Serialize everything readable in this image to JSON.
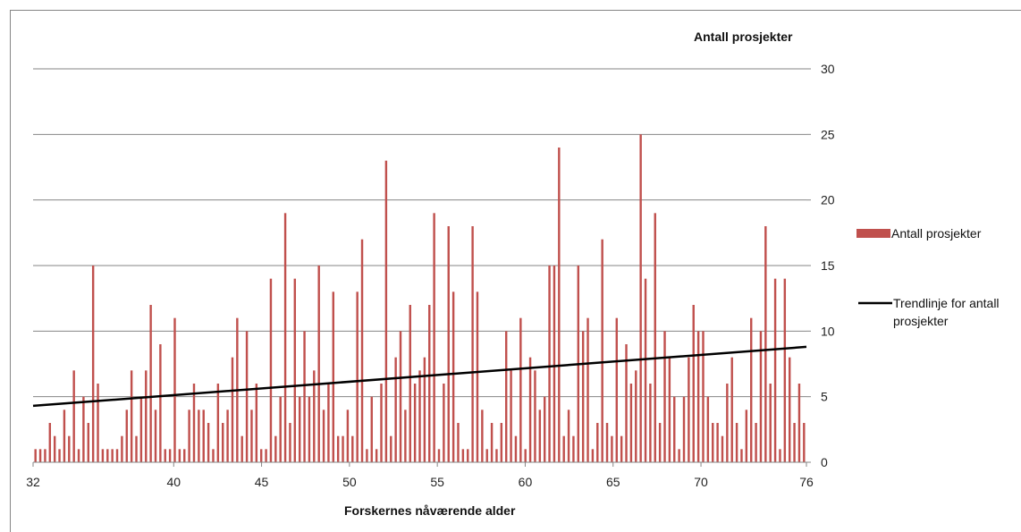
{
  "chart_data": {
    "type": "bar",
    "title": "",
    "xlabel": "Forskernes nåværende alder",
    "ylabel": "Antall prosjekter",
    "ylim": [
      0,
      30
    ],
    "y_ticks": [
      0,
      5,
      10,
      15,
      20,
      25,
      30
    ],
    "x_range": [
      32,
      76
    ],
    "x_ticks": [
      32,
      40,
      45,
      50,
      55,
      60,
      65,
      70,
      76
    ],
    "y_axis_side": "right",
    "grid": true,
    "legend_position": "right",
    "colors": {
      "bar": "#C0504D",
      "trend": "#000000",
      "grid": "#868686"
    },
    "series": [
      {
        "name": "Antall prosjekter",
        "kind": "bar",
        "values": [
          1,
          1,
          1,
          3,
          2,
          1,
          4,
          2,
          7,
          1,
          5,
          3,
          15,
          6,
          1,
          1,
          1,
          1,
          2,
          4,
          7,
          2,
          5,
          7,
          12,
          4,
          9,
          1,
          1,
          11,
          1,
          1,
          4,
          6,
          4,
          4,
          3,
          1,
          6,
          3,
          4,
          8,
          11,
          2,
          10,
          4,
          6,
          1,
          1,
          14,
          2,
          5,
          19,
          3,
          14,
          5,
          10,
          5,
          7,
          15,
          4,
          6,
          13,
          2,
          2,
          4,
          2,
          13,
          17,
          1,
          5,
          1,
          6,
          23,
          2,
          8,
          10,
          4,
          12,
          6,
          7,
          8,
          12,
          19,
          1,
          6,
          18,
          13,
          3,
          1,
          1,
          18,
          13,
          4,
          1,
          3,
          1,
          3,
          10,
          7,
          2,
          11,
          1,
          8,
          7,
          4,
          5,
          15,
          15,
          24,
          2,
          4,
          2,
          15,
          10,
          11,
          1,
          3,
          17,
          3,
          2,
          11,
          2,
          9,
          6,
          7,
          25,
          14,
          6,
          19,
          3,
          10,
          8,
          5,
          1,
          5,
          8,
          12,
          10,
          10,
          5,
          3,
          3,
          2,
          6,
          8,
          3,
          1,
          4,
          11,
          3,
          10,
          18,
          6,
          14,
          1,
          14,
          8,
          3,
          6,
          3
        ]
      },
      {
        "name": "Trendlinje for antall prosjekter",
        "kind": "trendline",
        "x": [
          32,
          76
        ],
        "values": [
          4.3,
          8.8
        ]
      }
    ]
  }
}
